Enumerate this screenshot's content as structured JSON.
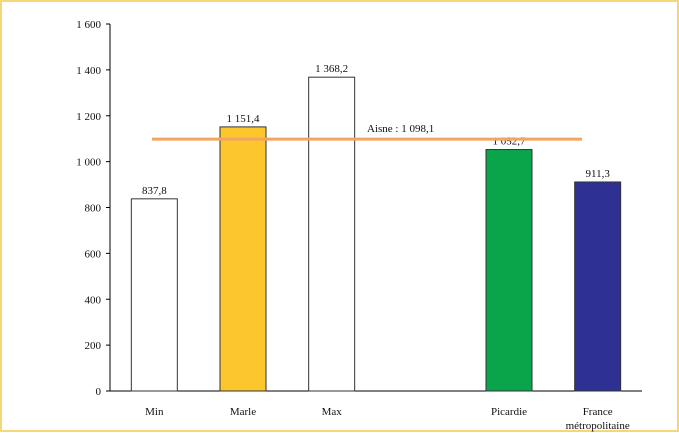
{
  "chart_data": {
    "type": "bar",
    "categories": [
      "Min",
      "Marle",
      "Max",
      "",
      "Picardie",
      "France métropolitaine"
    ],
    "category_lines": [
      [
        "Min"
      ],
      [
        "Marle"
      ],
      [
        "Max"
      ],
      [],
      [
        "Picardie"
      ],
      [
        "France",
        "métropolitaine"
      ]
    ],
    "values": [
      837.8,
      1151.4,
      1368.2,
      null,
      1052.7,
      911.3
    ],
    "value_labels": [
      "837,8",
      "1 151,4",
      "1 368,2",
      "",
      "1 052,7",
      "911,3"
    ],
    "bar_colors": [
      "#ffffff",
      "#fcc72c",
      "#ffffff",
      null,
      "#0aa54b",
      "#2e3192"
    ],
    "ylim": [
      0,
      1600
    ],
    "yticks": [
      0,
      200,
      400,
      600,
      800,
      1000,
      1200,
      1400,
      1600
    ],
    "ytick_labels": [
      "0",
      "200",
      "400",
      "600",
      "800",
      "1 000",
      "1 200",
      "1 400",
      "1 600"
    ],
    "reference_line": {
      "label": "Aisne : 1 098,1",
      "value": 1098.1,
      "color": "#f4a460"
    },
    "title": "",
    "xlabel": "",
    "ylabel": "",
    "grid": false,
    "legend": "none"
  },
  "colors": {
    "frame_border": "#f5d77a",
    "axis": "#000000",
    "bar_outline": "#333333"
  }
}
